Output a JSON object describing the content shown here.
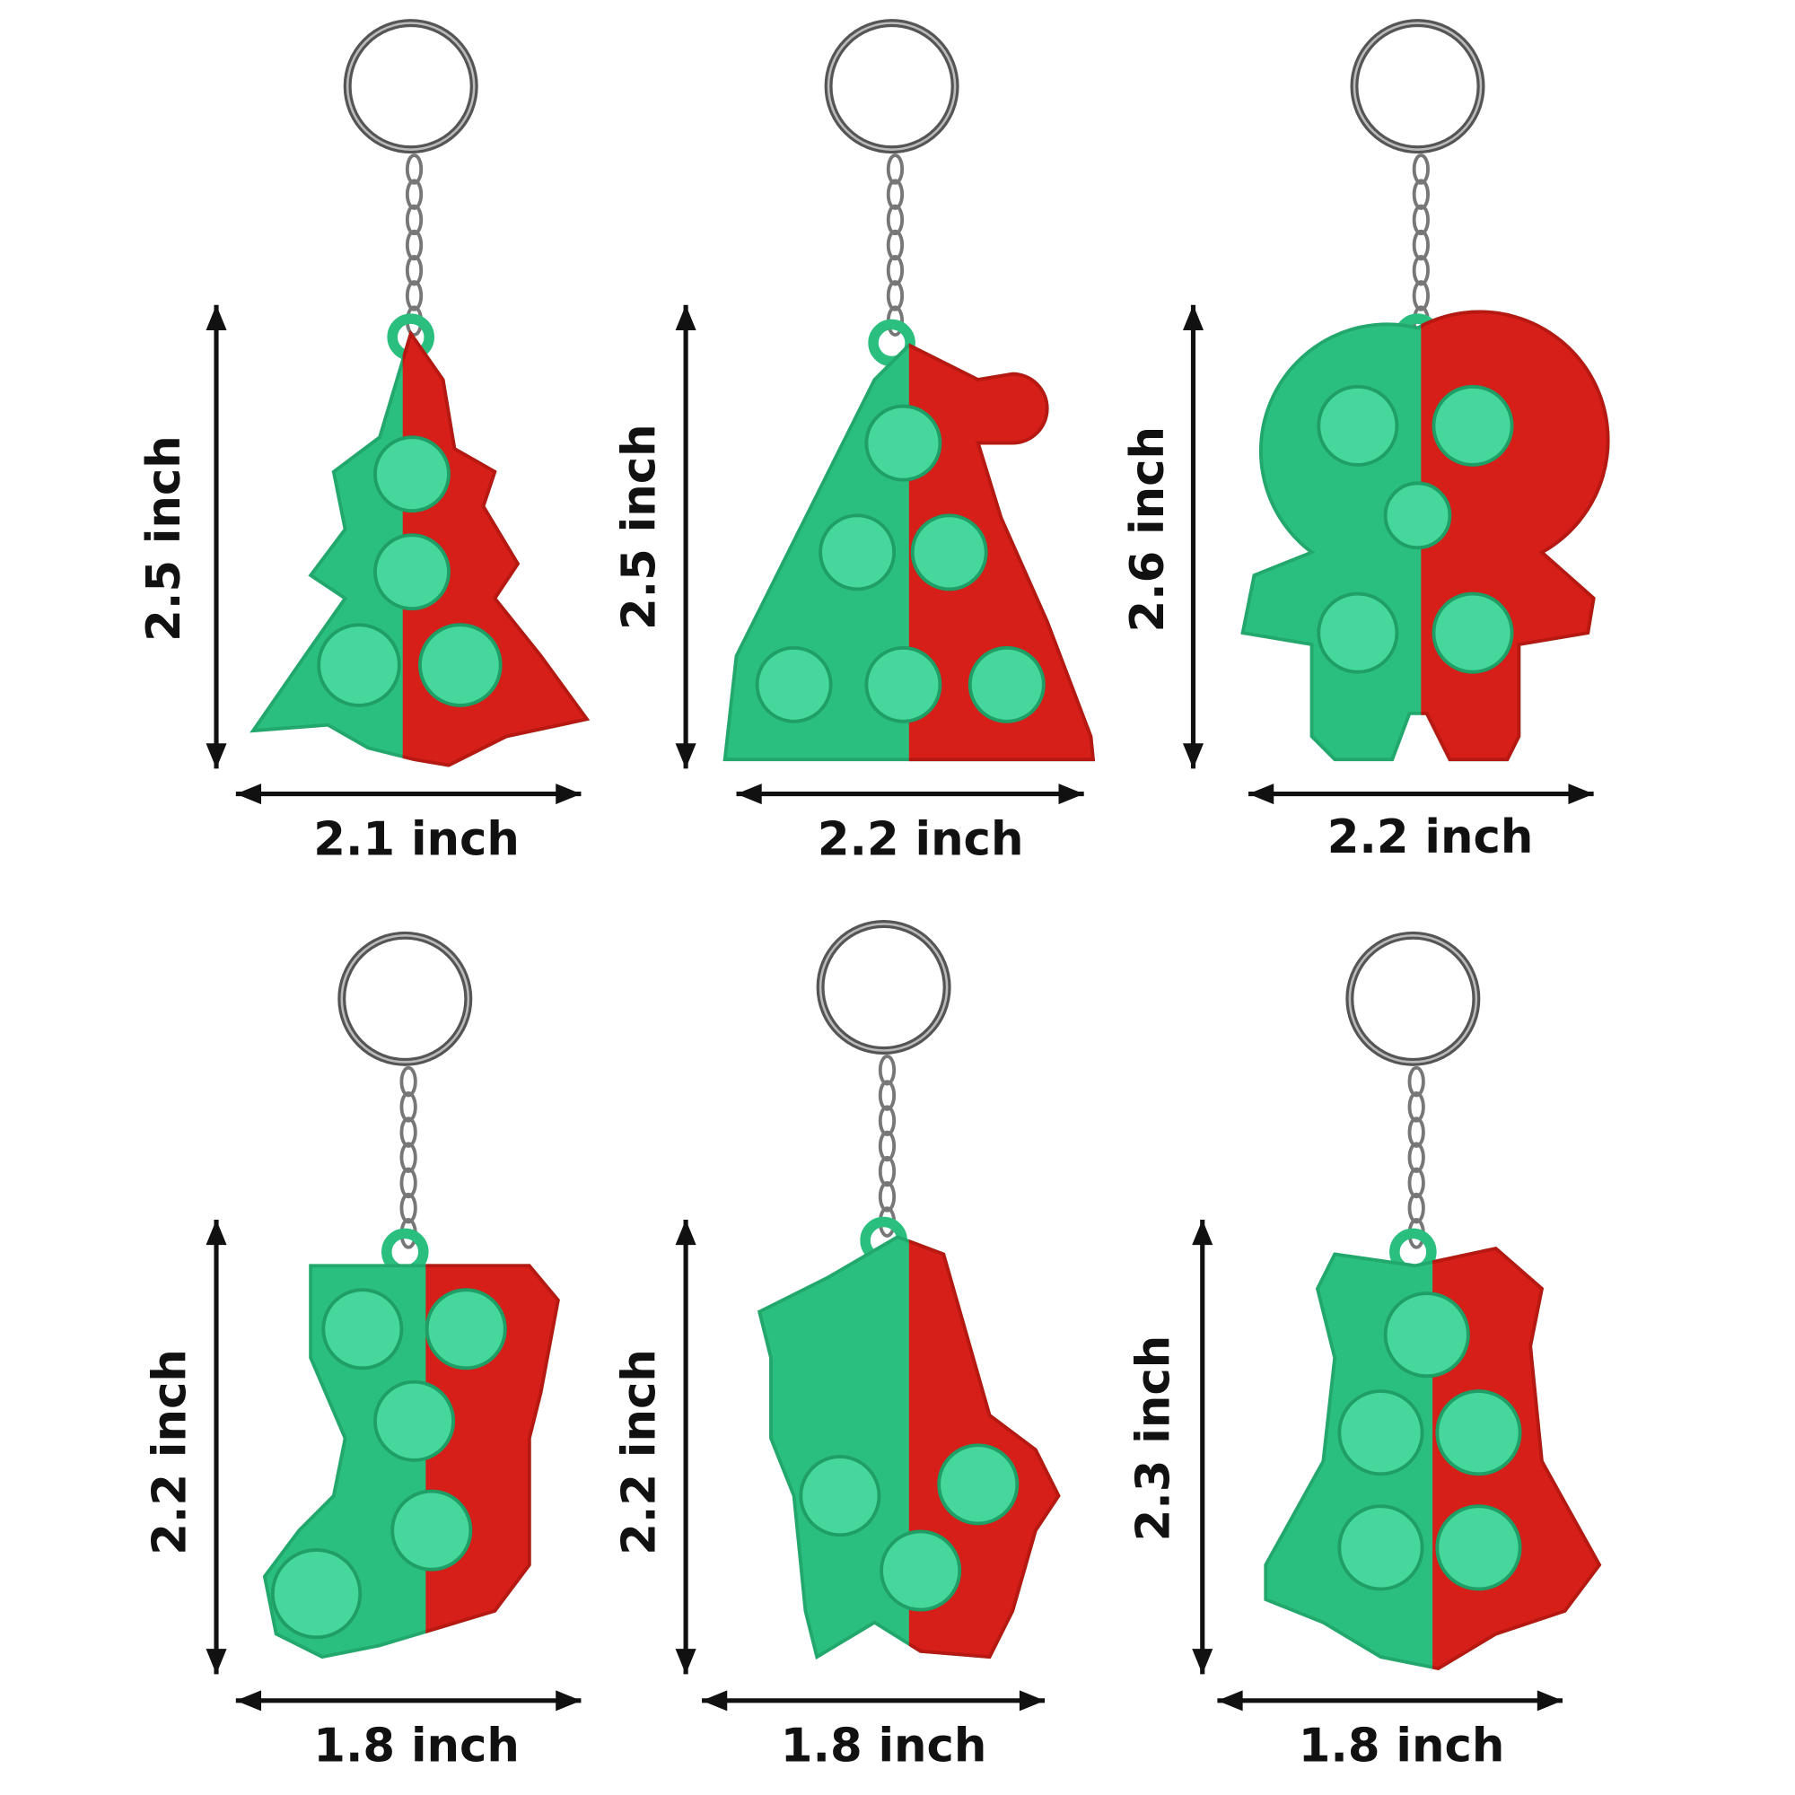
{
  "items": [
    {
      "height": "2.5 inch",
      "width": "2.1 inch"
    },
    {
      "height": "2.5 inch",
      "width": "2.2 inch"
    },
    {
      "height": "2.6 inch",
      "width": "2.2 inch"
    },
    {
      "height": "2.2 inch",
      "width": "1.8 inch"
    },
    {
      "height": "2.2 inch",
      "width": "1.8 inch"
    },
    {
      "height": "2.3 inch",
      "width": "1.8 inch"
    }
  ]
}
